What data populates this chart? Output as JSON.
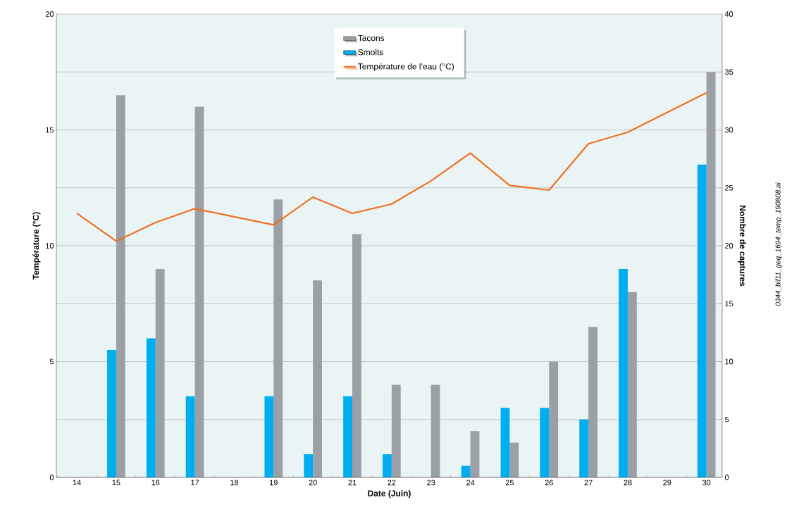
{
  "chart_data": {
    "type": "bar",
    "xlabel": "Date (Juin)",
    "ylabel": "Température (°C)",
    "y2label": "Nombre de captures",
    "categories": [
      "14",
      "15",
      "16",
      "17",
      "18",
      "19",
      "20",
      "21",
      "22",
      "23",
      "24",
      "25",
      "26",
      "27",
      "28",
      "29",
      "30"
    ],
    "series": [
      {
        "name": "Tacons",
        "axis": "y2",
        "color": "#9aa0a6",
        "values": [
          null,
          33,
          18,
          32,
          null,
          24,
          17,
          21,
          8,
          8,
          4,
          3,
          10,
          13,
          16,
          null,
          35
        ]
      },
      {
        "name": "Smolts",
        "axis": "y2",
        "color": "#00aeef",
        "values": [
          null,
          11,
          12,
          7,
          null,
          7,
          2,
          7,
          2,
          null,
          1,
          6,
          6,
          5,
          18,
          null,
          27
        ]
      },
      {
        "name": "Température de l’eau (°C)",
        "type": "line",
        "color": "#f07122",
        "values": [
          11.4,
          10.2,
          11.0,
          11.6,
          11.25,
          10.9,
          12.1,
          11.4,
          11.8,
          12.8,
          14.0,
          12.6,
          12.4,
          14.4,
          14.9,
          15.75,
          16.6
        ]
      }
    ],
    "ylim": [
      0,
      20
    ],
    "yticks": [
      0,
      5,
      10,
      15,
      20
    ],
    "y2lim": [
      0,
      40
    ],
    "y2ticks": [
      0,
      5,
      10,
      15,
      20,
      25,
      30,
      35,
      40
    ],
    "grid": "y",
    "legend": "top",
    "annotations": [
      "0344_bif11_geq_1694_temp_190808.ai"
    ]
  }
}
